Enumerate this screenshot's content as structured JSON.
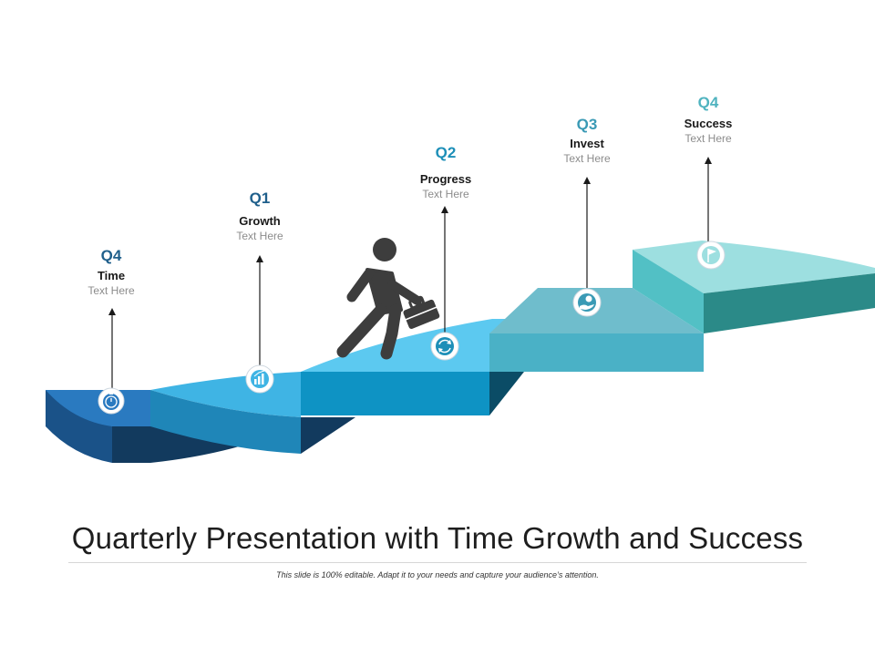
{
  "steps": [
    {
      "quarter": "Q4",
      "title": "Time",
      "text": "Text Here",
      "quarter_color": "#1f5f8b",
      "icon": "stopwatch-icon"
    },
    {
      "quarter": "Q1",
      "title": "Growth",
      "text": "Text Here",
      "quarter_color": "#1f5f8b",
      "icon": "bar-chart-icon"
    },
    {
      "quarter": "Q2",
      "title": "Progress",
      "text": "Text Here",
      "quarter_color": "#1d8fb8",
      "icon": "refresh-icon"
    },
    {
      "quarter": "Q3",
      "title": "Invest",
      "text": "Text Here",
      "quarter_color": "#3a9ab5",
      "icon": "hand-coin-icon"
    },
    {
      "quarter": "Q4",
      "title": "Success",
      "text": "Text Here",
      "quarter_color": "#4fb3bf",
      "icon": "flag-icon"
    }
  ],
  "title": "Quarterly Presentation with Time Growth and Success",
  "subtitle": "This slide is 100% editable. Adapt it to your needs and capture your audience’s attention.",
  "colors": {
    "step1_top": "#2a7ac0",
    "step1_side": "#1a5288",
    "step1_dark": "#123a5e",
    "step2_top": "#3fb4e4",
    "step2_front": "#1f86b8",
    "step3_top": "#5cc9f0",
    "step3_front": "#0e93c4",
    "step3_dark": "#0b4c66",
    "step4_top": "#6fbdcc",
    "step4_front": "#4ab1c6",
    "step5_top": "#9ddfe0",
    "step5_side": "#52c0c5",
    "step5_right": "#2b8a88",
    "figure": "#3d3d3d"
  }
}
